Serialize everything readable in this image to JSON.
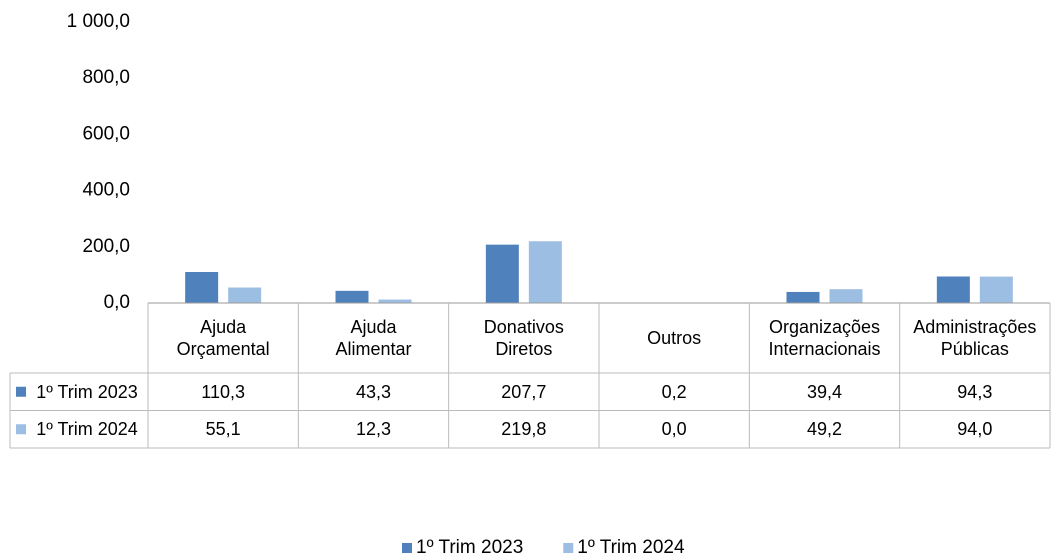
{
  "chart_data": {
    "type": "bar",
    "categories": [
      "Ajuda Orçamental",
      "Ajuda Alimentar",
      "Donativos Diretos",
      "Outros",
      "Organizações Internacionais",
      "Administrações Públicas"
    ],
    "series": [
      {
        "name": "1º Trim 2023",
        "color": "#4f81bd",
        "values": [
          110.3,
          43.3,
          207.7,
          0.2,
          39.4,
          94.3
        ],
        "value_labels": [
          "110,3",
          "43,3",
          "207,7",
          "0,2",
          "39,4",
          "94,3"
        ]
      },
      {
        "name": "1º Trim 2024",
        "color": "#9dbee3",
        "values": [
          55.1,
          12.3,
          219.8,
          0.0,
          49.2,
          94.0
        ],
        "value_labels": [
          "55,1",
          "12,3",
          "219,8",
          "0,0",
          "49,2",
          "94,0"
        ]
      }
    ],
    "ylim": [
      0,
      1000
    ],
    "yticks": [
      {
        "value": 0,
        "label": "0,0"
      },
      {
        "value": 200,
        "label": "200,0"
      },
      {
        "value": 400,
        "label": "400,0"
      },
      {
        "value": 600,
        "label": "600,0"
      },
      {
        "value": 800,
        "label": "800,0"
      },
      {
        "value": 1000,
        "label": "1 000,0"
      }
    ],
    "grid": false,
    "legend": "bottom"
  }
}
